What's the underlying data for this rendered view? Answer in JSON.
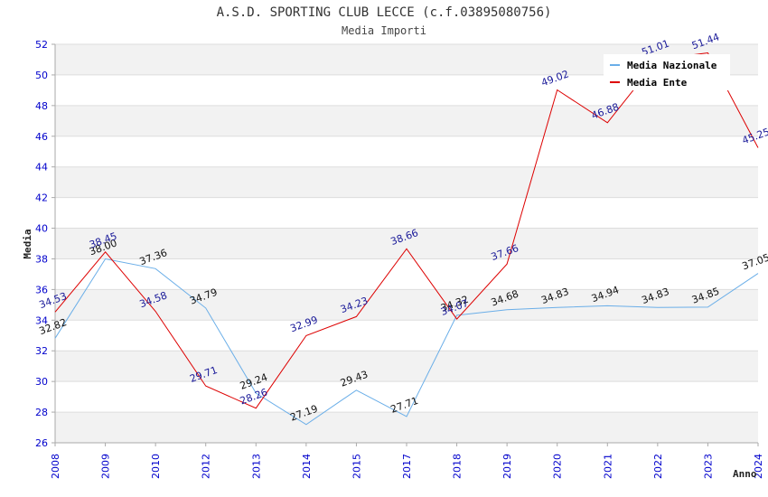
{
  "chart_data": {
    "type": "line",
    "title": "A.S.D. SPORTING CLUB LECCE (c.f.03895080756)",
    "subtitle": "Media Importi",
    "xlabel": "Anno",
    "ylabel": "Media",
    "categories": [
      "2008",
      "2009",
      "2010",
      "2012",
      "2013",
      "2014",
      "2015",
      "2017",
      "2018",
      "2019",
      "2020",
      "2021",
      "2022",
      "2023",
      "2024"
    ],
    "ylim": [
      26,
      52
    ],
    "yticks": [
      26,
      28,
      30,
      32,
      34,
      36,
      38,
      40,
      42,
      44,
      46,
      48,
      50,
      52
    ],
    "grid": true,
    "legend_position": "top-right",
    "series": [
      {
        "name": "Media Nazionale",
        "color": "#6aaee8",
        "values": [
          32.82,
          38.0,
          37.36,
          34.79,
          29.24,
          27.19,
          29.43,
          27.71,
          34.32,
          34.68,
          34.83,
          34.94,
          34.83,
          34.85,
          37.05
        ],
        "labels": [
          "32.82",
          "38.00",
          "37.36",
          "34.79",
          "29.24",
          "27.19",
          "29.43",
          "27.71",
          "34.32",
          "34.68",
          "34.83",
          "34.94",
          "34.83",
          "34.85",
          "37.05"
        ]
      },
      {
        "name": "Media Ente",
        "color": "#dd0000",
        "values": [
          34.53,
          38.45,
          34.58,
          29.71,
          28.26,
          32.99,
          34.23,
          38.66,
          34.07,
          37.66,
          49.02,
          46.88,
          51.01,
          51.44,
          45.25
        ],
        "labels": [
          "34.53",
          "38.45",
          "34.58",
          "29.71",
          "28.26",
          "32.99",
          "34.23",
          "38.66",
          "34.07",
          "37.66",
          "49.02",
          "46.88",
          "51.01",
          "51.44",
          "45.25"
        ]
      }
    ]
  }
}
